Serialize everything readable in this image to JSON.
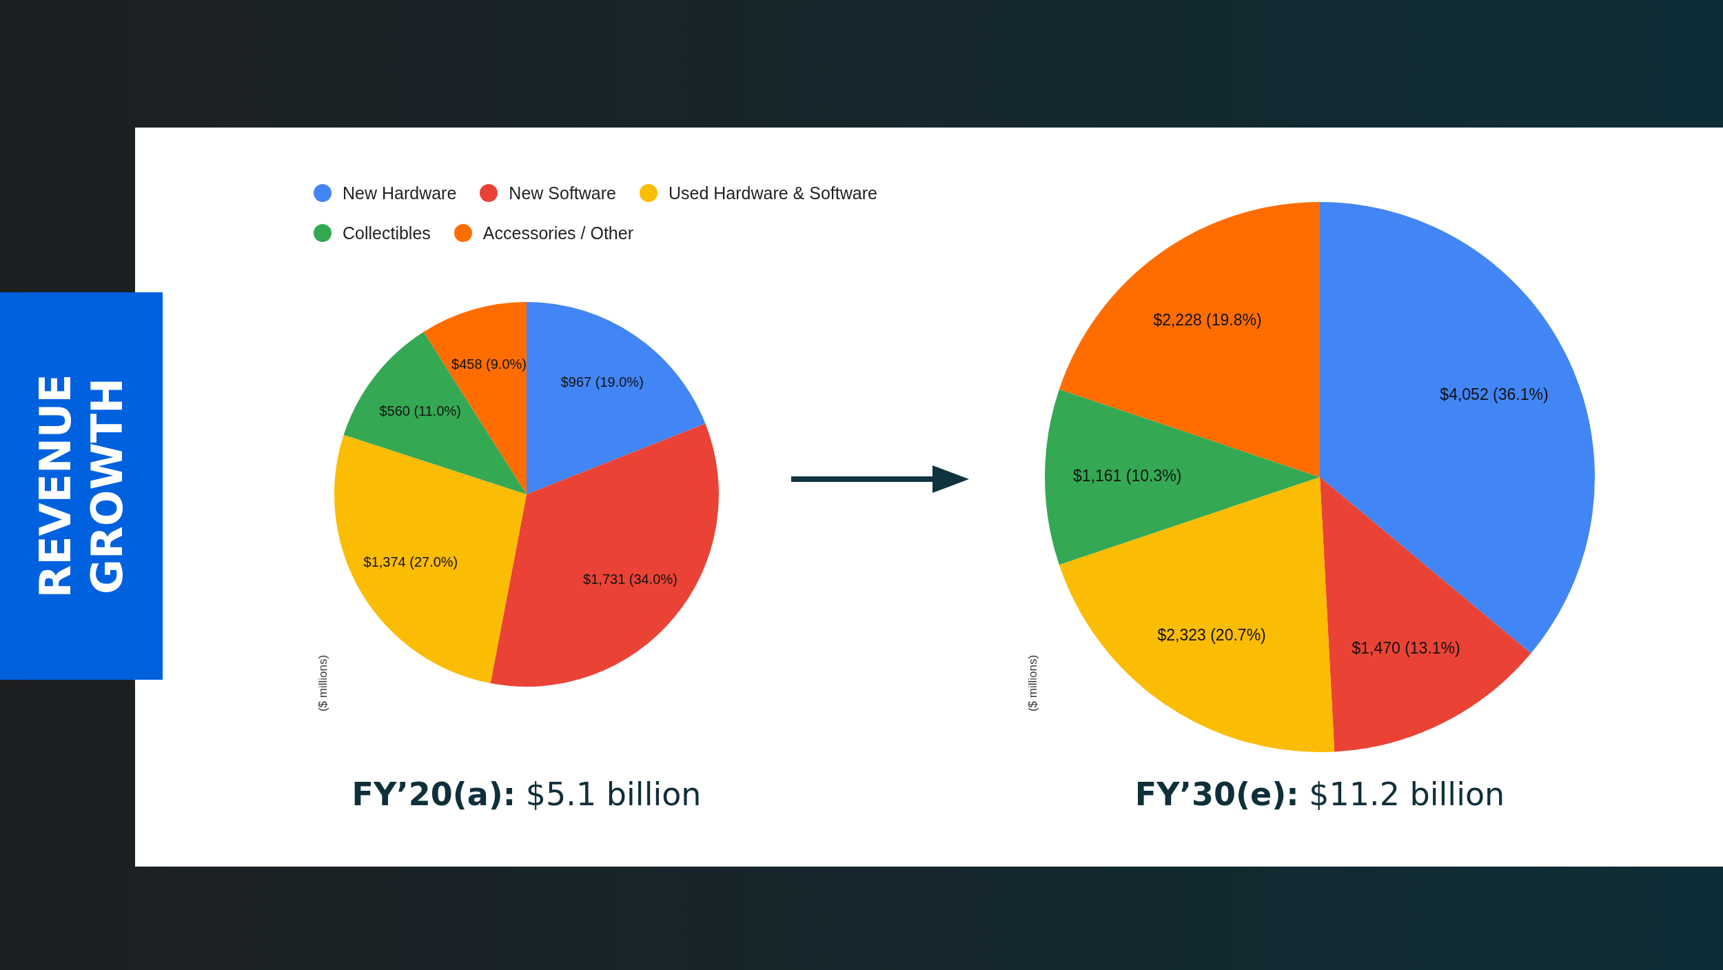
{
  "chart_data": [
    {
      "type": "pie",
      "title": "FY’20(a): $5.1 billion",
      "ylabel": "($ millions)",
      "annotations": [
        "REVENUE GROWTH"
      ],
      "legend": "top",
      "categories": [
        "New Hardware",
        "New Software",
        "Used Hardware & Software",
        "Collectibles",
        "Accessories / Other"
      ],
      "values": [
        967,
        1731,
        1374,
        560,
        458
      ],
      "value_labels": [
        "$967 (19.0%)",
        "$1,731 (34.0%)",
        "$1,374 (27.0%)",
        "$560 (11.0%)",
        "$458 (9.0%)"
      ],
      "colors": [
        "#4285f4",
        "#ea4335",
        "#fbbc04",
        "#34a853",
        "#ff6d01"
      ]
    },
    {
      "type": "pie",
      "title": "FY’30(e): $11.2 billion",
      "ylabel": "($ millions)",
      "categories": [
        null,
        null,
        null,
        null,
        null
      ],
      "values": [
        4052,
        1470,
        2323,
        1161,
        2228
      ],
      "value_labels": [
        "$4,052 (36.1%)",
        "$1,470 (13.1%)",
        "$2,323 (20.7%)",
        "$1,161 (10.3%)",
        "$2,228 (19.8%)"
      ],
      "colors": [
        "#4285f4",
        "#ea4335",
        "#fbbc04",
        "#34a853",
        "#ff6d01"
      ]
    }
  ]
}
